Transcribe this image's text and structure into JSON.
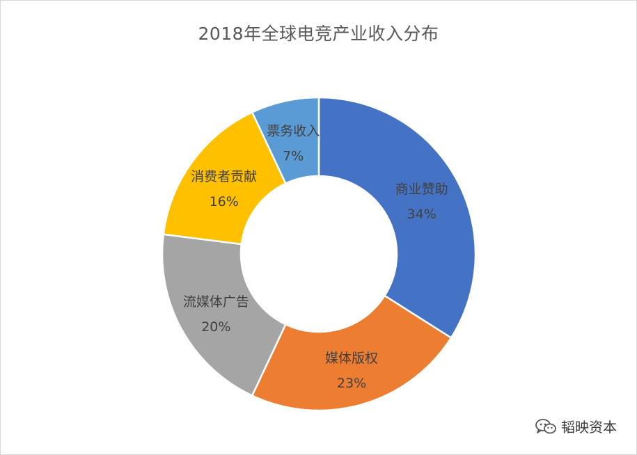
{
  "watermark": {
    "text": "韬映资本",
    "icon": "wechat-icon"
  },
  "chart_data": {
    "type": "pie",
    "subtype": "donut",
    "title": "2018年全球电竞产业收入分布",
    "categories": [
      "商业赞助",
      "媒体版权",
      "流媒体广告",
      "消费者贡献",
      "票务收入"
    ],
    "values": [
      34,
      23,
      20,
      16,
      7
    ],
    "unit": "%",
    "colors": [
      "#4472C4",
      "#ED7D31",
      "#A5A5A5",
      "#FFC000",
      "#5B9BD5"
    ],
    "data_labels": [
      {
        "name": "商业赞助",
        "value": "34%"
      },
      {
        "name": "媒体版权",
        "value": "23%"
      },
      {
        "name": "流媒体广告",
        "value": "20%"
      },
      {
        "name": "消费者贡献",
        "value": "16%"
      },
      {
        "name": "票务收入",
        "value": "7%"
      }
    ],
    "legend": "none"
  }
}
